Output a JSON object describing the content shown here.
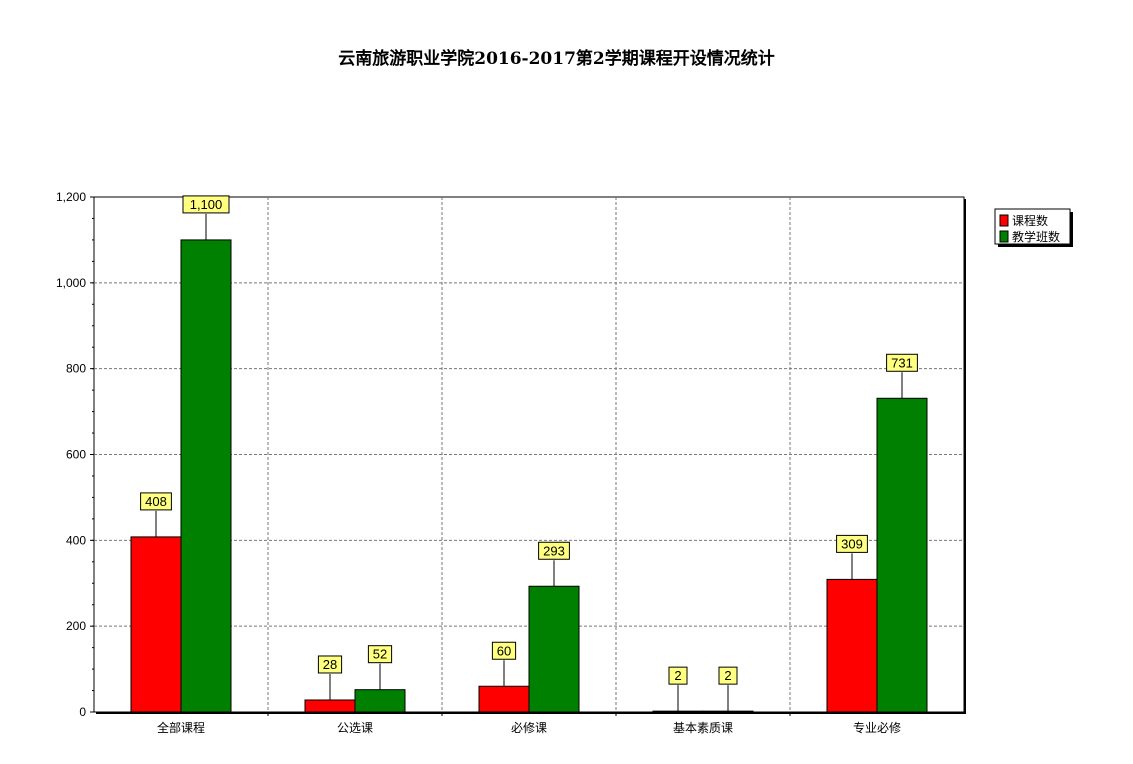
{
  "chart_data": {
    "type": "bar",
    "title": "云南旅游职业学院2016-2017第2学期课程开设情况统计",
    "categories": [
      "全部课程",
      "公选课",
      "必修课",
      "基本素质课",
      "专业必修"
    ],
    "series": [
      {
        "name": "课程数",
        "color": "#ff0000",
        "values": [
          408,
          28,
          60,
          2,
          309
        ],
        "labels": [
          "408",
          "28",
          "60",
          "2",
          "309"
        ]
      },
      {
        "name": "教学班数",
        "color": "#008000",
        "values": [
          1100,
          52,
          293,
          2,
          731
        ],
        "labels": [
          "1,100",
          "52",
          "293",
          "2",
          "731"
        ]
      }
    ],
    "ylim": [
      0,
      1200
    ],
    "yticks": [
      0,
      200,
      400,
      600,
      800,
      1000,
      1200
    ],
    "ytick_labels": [
      "0",
      "200",
      "400",
      "600",
      "800",
      "1,000",
      "1,200"
    ],
    "grid": true,
    "legend_position": "top-right",
    "xlabel": "",
    "ylabel": ""
  }
}
